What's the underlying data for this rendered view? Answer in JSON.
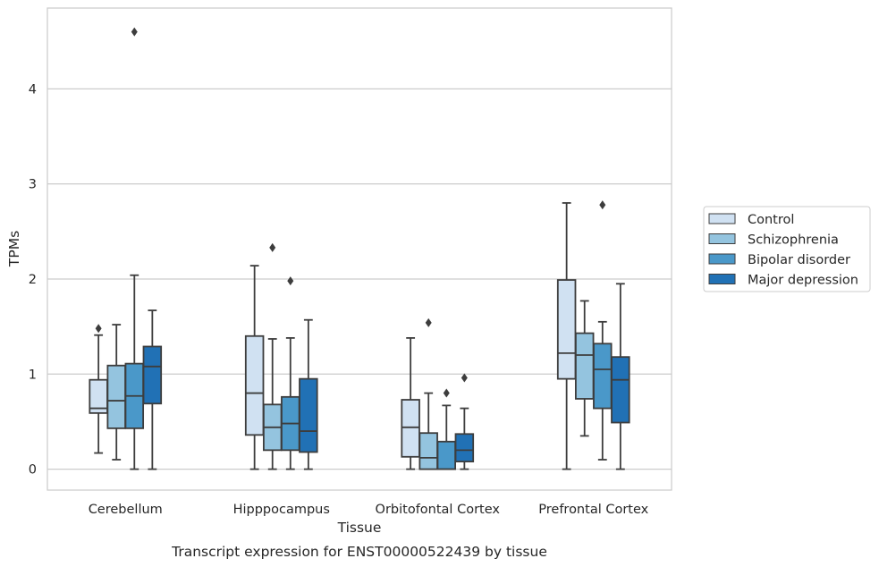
{
  "chart_data": {
    "type": "box",
    "xlabel": "Tissue",
    "ylabel": "TPMs",
    "caption": "Transcript expression for ENST00000522439 by tissue",
    "ylim": [
      -0.22,
      4.85
    ],
    "yticks": [
      "0",
      "1",
      "2",
      "3",
      "4"
    ],
    "categories": [
      "Cerebellum",
      "Hipppocampus",
      "Orbitofontal Cortex",
      "Prefrontal Cortex"
    ],
    "grid": "horizontal",
    "legend_position": "right",
    "series": [
      {
        "name": "Control",
        "color": "#d0e1f2",
        "boxes": [
          {
            "whislo": 0.17,
            "q1": 0.59,
            "med": 0.64,
            "q3": 0.94,
            "whishi": 1.41,
            "fliers": [
              1.48
            ]
          },
          {
            "whislo": 0.0,
            "q1": 0.36,
            "med": 0.8,
            "q3": 1.4,
            "whishi": 2.14,
            "fliers": []
          },
          {
            "whislo": 0.0,
            "q1": 0.13,
            "med": 0.44,
            "q3": 0.73,
            "whishi": 1.38,
            "fliers": []
          },
          {
            "whislo": 0.0,
            "q1": 0.95,
            "med": 1.22,
            "q3": 1.99,
            "whishi": 2.8,
            "fliers": []
          }
        ]
      },
      {
        "name": "Schizophrenia",
        "color": "#94c4df",
        "boxes": [
          {
            "whislo": 0.1,
            "q1": 0.43,
            "med": 0.72,
            "q3": 1.09,
            "whishi": 1.52,
            "fliers": []
          },
          {
            "whislo": 0.0,
            "q1": 0.2,
            "med": 0.44,
            "q3": 0.68,
            "whishi": 1.37,
            "fliers": [
              2.33
            ]
          },
          {
            "whislo": 0.0,
            "q1": 0.0,
            "med": 0.12,
            "q3": 0.38,
            "whishi": 0.8,
            "fliers": [
              1.54
            ]
          },
          {
            "whislo": 0.35,
            "q1": 0.74,
            "med": 1.2,
            "q3": 1.43,
            "whishi": 1.77,
            "fliers": []
          }
        ]
      },
      {
        "name": "Bipolar disorder",
        "color": "#4a98c9",
        "boxes": [
          {
            "whislo": 0.0,
            "q1": 0.43,
            "med": 0.77,
            "q3": 1.11,
            "whishi": 2.04,
            "fliers": [
              4.6
            ]
          },
          {
            "whislo": 0.0,
            "q1": 0.2,
            "med": 0.48,
            "q3": 0.76,
            "whishi": 1.38,
            "fliers": [
              1.98
            ]
          },
          {
            "whislo": 0.0,
            "q1": 0.0,
            "med": 0.0,
            "q3": 0.29,
            "whishi": 0.67,
            "fliers": [
              0.8
            ]
          },
          {
            "whislo": 0.1,
            "q1": 0.64,
            "med": 1.05,
            "q3": 1.32,
            "whishi": 1.55,
            "fliers": [
              2.78
            ]
          }
        ]
      },
      {
        "name": "Major depression",
        "color": "#2171b5",
        "boxes": [
          {
            "whislo": 0.0,
            "q1": 0.69,
            "med": 1.08,
            "q3": 1.29,
            "whishi": 1.67,
            "fliers": []
          },
          {
            "whislo": 0.0,
            "q1": 0.18,
            "med": 0.4,
            "q3": 0.95,
            "whishi": 1.57,
            "fliers": []
          },
          {
            "whislo": 0.0,
            "q1": 0.08,
            "med": 0.2,
            "q3": 0.37,
            "whishi": 0.64,
            "fliers": [
              0.96
            ]
          },
          {
            "whislo": 0.0,
            "q1": 0.49,
            "med": 0.94,
            "q3": 1.18,
            "whishi": 1.95,
            "fliers": []
          }
        ]
      }
    ]
  }
}
